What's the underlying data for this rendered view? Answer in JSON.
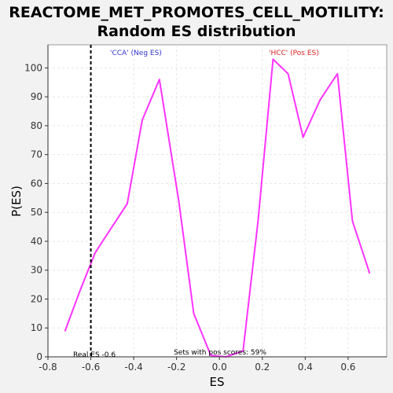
{
  "chart_data": {
    "type": "line",
    "title": "REACTOME_MET_PROMOTES_CELL_MOTILITY:",
    "subtitle": "Random ES distribution",
    "xlabel": "ES",
    "ylabel": "P(ES)",
    "xlim": [
      -0.8,
      0.78
    ],
    "ylim": [
      0,
      108
    ],
    "xticks": [
      -0.8,
      -0.6,
      -0.4,
      -0.2,
      0.0,
      0.2,
      0.4,
      0.6
    ],
    "xtick_labels": [
      "-0.8",
      "-0.6",
      "-0.4",
      "-0.2",
      "0.0",
      "0.2",
      "0.4",
      "0.6"
    ],
    "yticks": [
      0,
      10,
      20,
      30,
      40,
      50,
      60,
      70,
      80,
      90,
      100
    ],
    "ytick_labels": [
      "0",
      "10",
      "20",
      "30",
      "40",
      "50",
      "60",
      "70",
      "80",
      "90",
      "100"
    ],
    "grid": true,
    "series": [
      {
        "color": "#ff33ff",
        "x": [
          -0.72,
          -0.65,
          -0.58,
          -0.51,
          -0.43,
          -0.36,
          -0.28,
          -0.19,
          -0.12,
          -0.04,
          0.03,
          0.11,
          0.18,
          0.25,
          0.32,
          0.39,
          0.47,
          0.55,
          0.62,
          0.7
        ],
        "y": [
          9,
          23,
          36,
          44,
          53,
          82,
          96,
          54,
          15,
          0.5,
          0,
          2,
          47,
          103,
          98,
          76,
          89,
          98,
          47,
          29
        ]
      }
    ],
    "real_es": {
      "x": -0.6,
      "color": "#000000",
      "label": "Real ES -0.6"
    },
    "annotations": {
      "neg_label": "'CCA' (Neg ES)",
      "neg_color": "#3333cc",
      "pos_label": "'HCC' (Pos ES)",
      "pos_color": "#dd2222",
      "sets_label": "Sets with pos scores: 59%"
    }
  }
}
